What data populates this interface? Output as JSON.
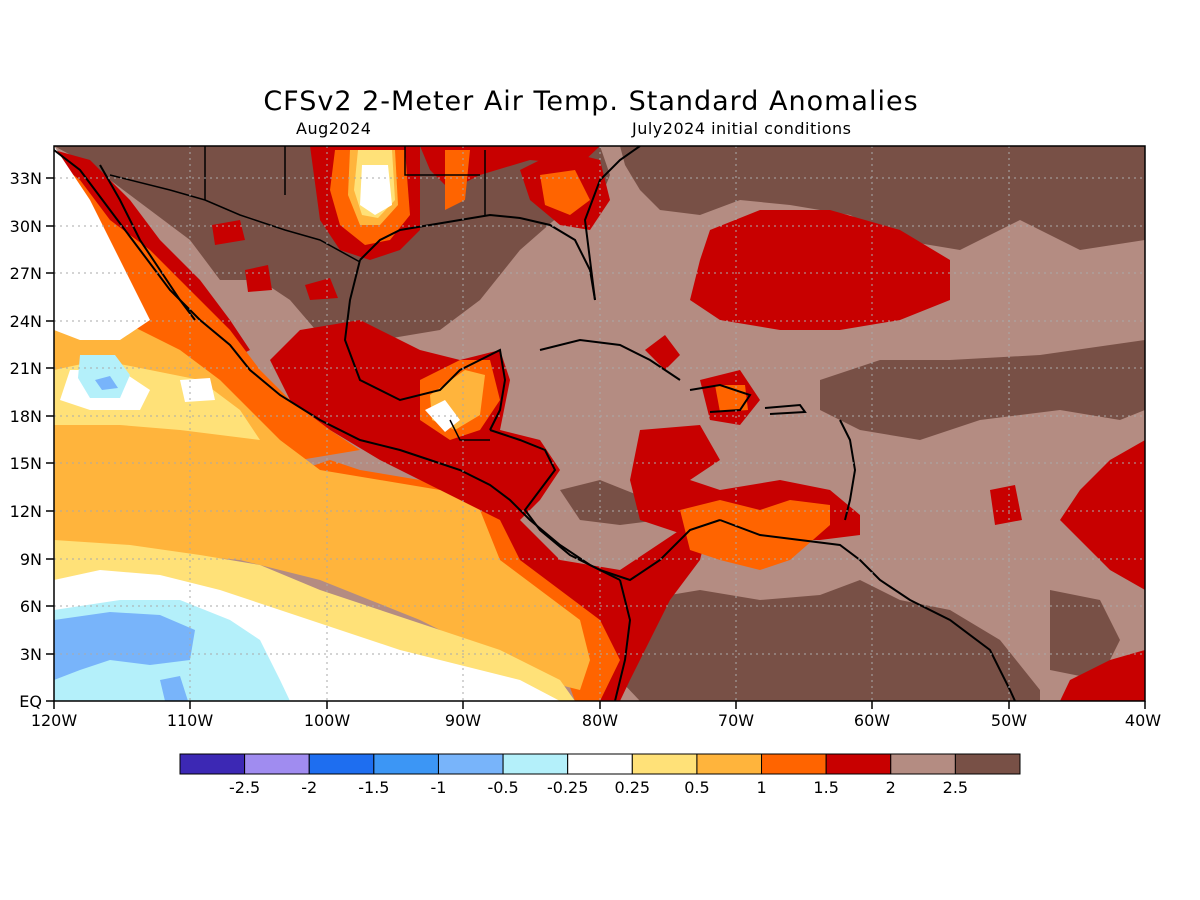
{
  "header": {
    "title": "CFSv2 2-Meter Air Temp. Standard Anomalies",
    "valid_month": "Aug2024",
    "initial_conditions": "July2024 initial conditions"
  },
  "axes": {
    "lat_labels": [
      "33N",
      "30N",
      "27N",
      "24N",
      "21N",
      "18N",
      "15N",
      "12N",
      "9N",
      "6N",
      "3N",
      "EQ"
    ],
    "lon_labels": [
      "120W",
      "110W",
      "100W",
      "90W",
      "80W",
      "70W",
      "60W",
      "50W",
      "40W"
    ]
  },
  "colorbar": {
    "colors": [
      "#3c28b4",
      "#a08cf0",
      "#1e6ef0",
      "#3c96f5",
      "#78b4fa",
      "#b4f0fa",
      "#ffffff",
      "#ffe178",
      "#ffb43c",
      "#ff6400",
      "#c80000",
      "#b48c82",
      "#785046"
    ],
    "tick_labels": [
      "-2.5",
      "-2",
      "-1.5",
      "-1",
      "-0.5",
      "-0.25",
      "0.25",
      "0.5",
      "1",
      "1.5",
      "2",
      "2.5"
    ]
  },
  "map_legend": {
    "background": "#b48c82",
    "high_anomaly": "#785046"
  }
}
